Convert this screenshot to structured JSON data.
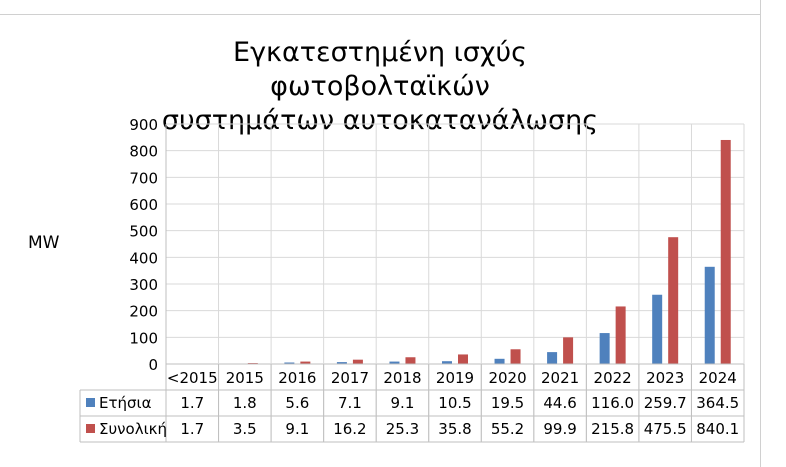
{
  "chart_data": {
    "type": "bar",
    "title_lines": [
      "Εγκατεστημένη ισχύς φωτοβολταϊκών",
      "συστημάτων αυτοκατανάλωσης"
    ],
    "xlabel": "",
    "ylabel": "MW",
    "ylim": [
      0,
      900
    ],
    "yticks": [
      0,
      100,
      200,
      300,
      400,
      500,
      600,
      700,
      800,
      900
    ],
    "grid": true,
    "categories": [
      "<2015",
      "2015",
      "2016",
      "2017",
      "2018",
      "2019",
      "2020",
      "2021",
      "2022",
      "2023",
      "2024"
    ],
    "series": [
      {
        "name": "Ετήσια",
        "color": "#4f81bd",
        "values": [
          1.7,
          1.8,
          5.6,
          7.1,
          9.1,
          10.5,
          19.5,
          44.6,
          116.0,
          259.7,
          364.5
        ],
        "labels": [
          "1.7",
          "1.8",
          "5.6",
          "7.1",
          "9.1",
          "10.5",
          "19.5",
          "44.6",
          "116.0",
          "259.7",
          "364.5"
        ]
      },
      {
        "name": "Συνολική",
        "color": "#c0504d",
        "values": [
          1.7,
          3.5,
          9.1,
          16.2,
          25.3,
          35.8,
          55.2,
          99.9,
          215.8,
          475.5,
          840.1
        ],
        "labels": [
          "1.7",
          "3.5",
          "9.1",
          "16.2",
          "25.3",
          "35.8",
          "55.2",
          "99.9",
          "215.8",
          "475.5",
          "840.1"
        ]
      }
    ],
    "data_table": true
  }
}
